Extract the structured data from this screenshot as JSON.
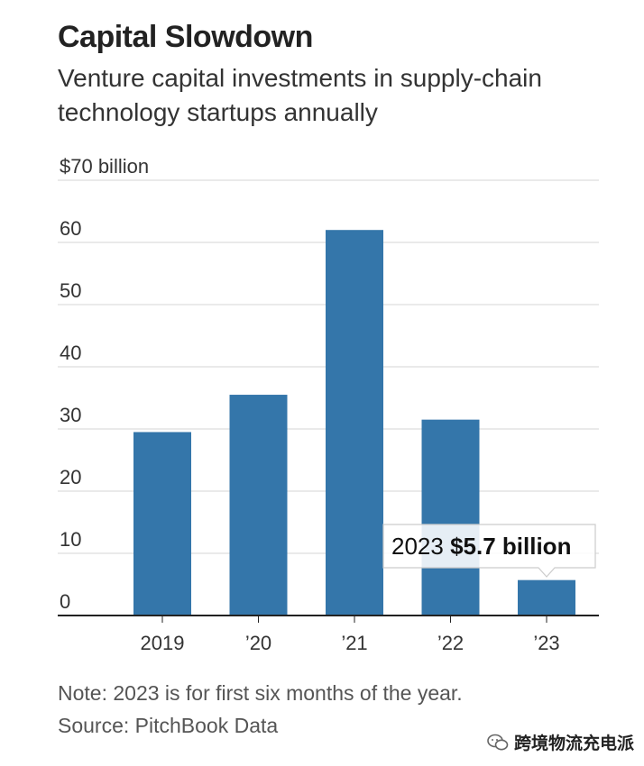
{
  "title": "Capital Slowdown",
  "subtitle": "Venture capital investments in supply-chain technology startups annually",
  "note": "Note: 2023 is for first six months of the year.",
  "source": "Source: PitchBook Data",
  "watermark": "跨境物流充电派",
  "colors": {
    "bar": "#3476aa",
    "grid": "#dddddd",
    "axis": "#222222",
    "text": "#333333"
  },
  "chart_data": {
    "type": "bar",
    "categories": [
      "2019",
      "’20",
      "’21",
      "’22",
      "’23"
    ],
    "values": [
      29.5,
      35.5,
      62,
      31.5,
      5.7
    ],
    "ylim": [
      0,
      70
    ],
    "yticks": [
      0,
      10,
      20,
      30,
      40,
      50,
      60,
      70
    ],
    "ytick_labels": [
      "0",
      "10",
      "20",
      "30",
      "40",
      "50",
      "60",
      "$70 billion"
    ],
    "grid": true,
    "annotation": {
      "category": "’23",
      "prefix": "2023",
      "value_text": "$5.7 billion"
    }
  }
}
